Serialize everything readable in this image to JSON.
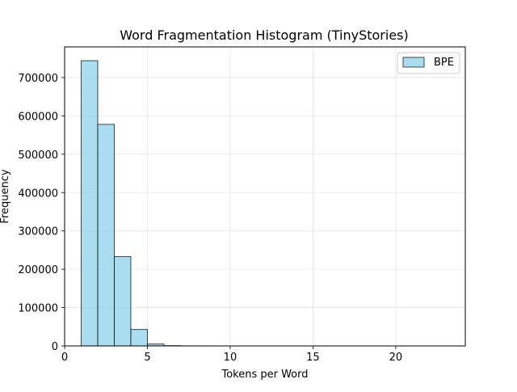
{
  "chart_data": {
    "type": "bar",
    "subtype": "histogram",
    "title": "Word Fragmentation Histogram (TinyStories)",
    "xlabel": "Tokens per Word",
    "ylabel": "Frequency",
    "xlim": [
      0,
      24.2
    ],
    "ylim": [
      0,
      780000
    ],
    "xticks": [
      0,
      5,
      10,
      15,
      20
    ],
    "yticks": [
      0,
      100000,
      200000,
      300000,
      400000,
      500000,
      600000,
      700000
    ],
    "grid": true,
    "legend_position": "top-right",
    "series": [
      {
        "name": "BPE",
        "color": "#87ceeb",
        "edgecolor": "#000000",
        "bins": [
          {
            "x0": 1,
            "x1": 2,
            "value": 744000
          },
          {
            "x0": 2,
            "x1": 3,
            "value": 578000
          },
          {
            "x0": 3,
            "x1": 4,
            "value": 233000
          },
          {
            "x0": 4,
            "x1": 5,
            "value": 43000
          },
          {
            "x0": 5,
            "x1": 6,
            "value": 5000
          },
          {
            "x0": 6,
            "x1": 7,
            "value": 700
          },
          {
            "x0": 7,
            "x1": 8,
            "value": 150
          },
          {
            "x0": 8,
            "x1": 9,
            "value": 50
          },
          {
            "x0": 9,
            "x1": 10,
            "value": 20
          },
          {
            "x0": 10,
            "x1": 11,
            "value": 10
          },
          {
            "x0": 11,
            "x1": 12,
            "value": 5
          },
          {
            "x0": 12,
            "x1": 13,
            "value": 3
          },
          {
            "x0": 13,
            "x1": 14,
            "value": 2
          },
          {
            "x0": 14,
            "x1": 15,
            "value": 1
          },
          {
            "x0": 15,
            "x1": 16,
            "value": 1
          },
          {
            "x0": 16,
            "x1": 17,
            "value": 1
          },
          {
            "x0": 17,
            "x1": 18,
            "value": 0
          },
          {
            "x0": 18,
            "x1": 19,
            "value": 1
          },
          {
            "x0": 19,
            "x1": 20,
            "value": 0
          },
          {
            "x0": 20,
            "x1": 21,
            "value": 0
          },
          {
            "x0": 21,
            "x1": 22,
            "value": 0
          },
          {
            "x0": 22,
            "x1": 23,
            "value": 1
          }
        ]
      }
    ]
  }
}
